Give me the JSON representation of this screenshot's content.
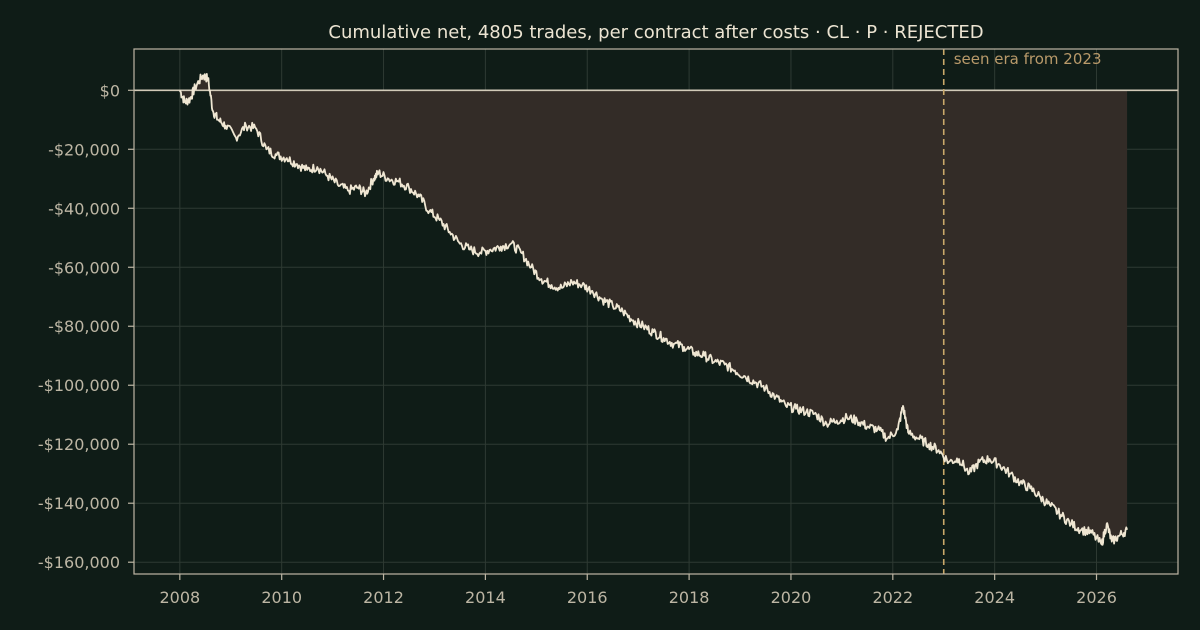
{
  "chart_data": {
    "type": "line",
    "title": "Cumulative net, 4805 trades, per contract after costs  ·  CL · P · REJECTED",
    "xlabel": "",
    "ylabel": "",
    "xlim": [
      2007.1,
      2027.6
    ],
    "ylim": [
      -164000,
      14000
    ],
    "x_ticks": [
      2008,
      2010,
      2012,
      2014,
      2016,
      2018,
      2020,
      2022,
      2024,
      2026
    ],
    "x_tick_labels": [
      "2008",
      "2010",
      "2012",
      "2014",
      "2016",
      "2018",
      "2020",
      "2022",
      "2024",
      "2026"
    ],
    "y_ticks": [
      0,
      -20000,
      -40000,
      -60000,
      -80000,
      -100000,
      -120000,
      -140000,
      -160000
    ],
    "y_tick_labels": [
      "$0",
      "-$20,000",
      "-$40,000",
      "-$60,000",
      "-$80,000",
      "-$100,000",
      "-$120,000",
      "-$140,000",
      "-$160,000"
    ],
    "grid": true,
    "zero_line": 0,
    "fill": "between series and zero line",
    "annotation": {
      "x": 2023.0,
      "label": "seen era from 2023",
      "style": "dashed vertical line"
    },
    "colors": {
      "line": "#efe6d2",
      "fill": "#332c27",
      "marker": "#c9a86a",
      "background": "#0f1c17",
      "axes_frame": "#bdb6a4"
    },
    "series": [
      {
        "x": [
          2008.0,
          2008.1,
          2008.2,
          2008.3,
          2008.45,
          2008.55,
          2008.65,
          2008.75,
          2008.9,
          2009.1,
          2009.3,
          2009.5,
          2009.7,
          2009.9,
          2010.1,
          2010.3,
          2010.5,
          2010.7,
          2010.9,
          2011.1,
          2011.3,
          2011.5,
          2011.65,
          2011.8,
          2011.9,
          2012.1,
          2012.3,
          2012.5,
          2012.7,
          2012.9,
          2013.1,
          2013.3,
          2013.5,
          2013.7,
          2013.9,
          2014.1,
          2014.3,
          2014.5,
          2014.7,
          2014.9,
          2015.1,
          2015.3,
          2015.5,
          2015.7,
          2015.9,
          2016.1,
          2016.3,
          2016.5,
          2016.7,
          2016.9,
          2017.1,
          2017.3,
          2017.5,
          2017.7,
          2017.9,
          2018.1,
          2018.3,
          2018.5,
          2018.7,
          2018.9,
          2019.1,
          2019.3,
          2019.5,
          2019.7,
          2019.9,
          2020.1,
          2020.3,
          2020.5,
          2020.7,
          2020.9,
          2021.1,
          2021.3,
          2021.5,
          2021.7,
          2021.9,
          2022.1,
          2022.2,
          2022.3,
          2022.5,
          2022.7,
          2022.9,
          2023.1,
          2023.3,
          2023.5,
          2023.7,
          2023.9,
          2024.1,
          2024.3,
          2024.5,
          2024.7,
          2024.9,
          2025.1,
          2025.3,
          2025.5,
          2025.7,
          2025.9,
          2026.1,
          2026.2,
          2026.3,
          2026.45,
          2026.6
        ],
        "values": [
          0,
          -4000,
          -3000,
          1000,
          5000,
          4000,
          -7000,
          -10000,
          -12000,
          -16000,
          -12000,
          -13000,
          -20000,
          -22000,
          -23000,
          -25000,
          -27000,
          -26000,
          -29000,
          -32000,
          -34000,
          -33000,
          -35000,
          -30000,
          -28000,
          -30000,
          -31000,
          -33000,
          -36000,
          -41000,
          -44000,
          -48000,
          -52000,
          -54000,
          -55000,
          -54000,
          -53000,
          -52000,
          -55000,
          -60000,
          -64000,
          -66000,
          -67000,
          -65000,
          -66000,
          -68000,
          -71000,
          -73000,
          -75000,
          -78000,
          -80000,
          -82000,
          -84000,
          -86000,
          -87000,
          -89000,
          -90000,
          -92000,
          -93000,
          -95000,
          -97000,
          -99000,
          -101000,
          -104000,
          -107000,
          -108000,
          -109000,
          -110000,
          -113000,
          -112000,
          -111000,
          -112000,
          -114000,
          -115000,
          -118000,
          -115000,
          -107000,
          -116000,
          -118000,
          -120000,
          -122000,
          -126000,
          -125000,
          -130000,
          -126000,
          -125000,
          -127000,
          -130000,
          -133000,
          -135000,
          -138000,
          -141000,
          -144000,
          -147000,
          -149000,
          -150000,
          -154000,
          -147000,
          -153000,
          -151000,
          -149000
        ]
      }
    ]
  }
}
